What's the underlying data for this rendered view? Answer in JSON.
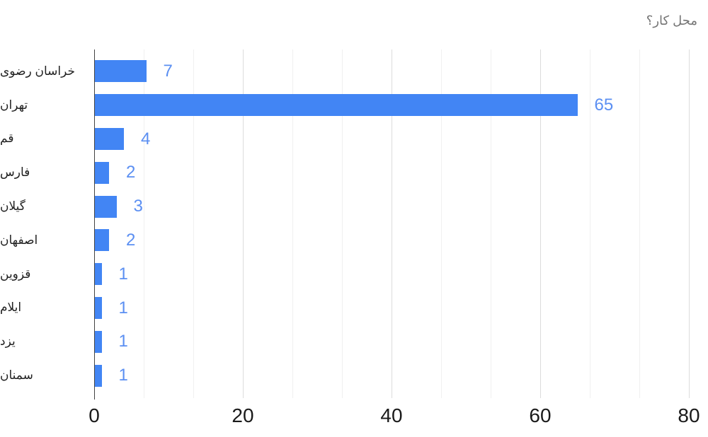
{
  "title": "محل کار؟",
  "chart_data": {
    "type": "bar",
    "orientation": "horizontal",
    "title": "محل کار؟",
    "categories": [
      "خراسان رضوی",
      "تهران",
      "قم",
      "فارس",
      "گیلان",
      "اصفهان",
      "قزوین",
      "ایلام",
      "یزد",
      "سمنان"
    ],
    "values": [
      7,
      65,
      4,
      2,
      3,
      2,
      1,
      1,
      1,
      1
    ],
    "xlabel": "",
    "ylabel": "",
    "xlim": [
      0,
      80
    ],
    "x_ticks": [
      0,
      20,
      40,
      60,
      80
    ],
    "minor_gridlines_per_major_interval": 2,
    "grid": true,
    "legend_position": "none",
    "value_labels_shown": true
  },
  "colors": {
    "bar": "#4285f4",
    "value_label": "#5b8ff2",
    "title_text": "#757575",
    "axis_text": "#212121",
    "tick_text": "#1a1a1a",
    "axis_line": "#424242",
    "major_gridline": "#dcdcdc",
    "minor_gridline": "#f0f0f0",
    "background": "#ffffff"
  }
}
